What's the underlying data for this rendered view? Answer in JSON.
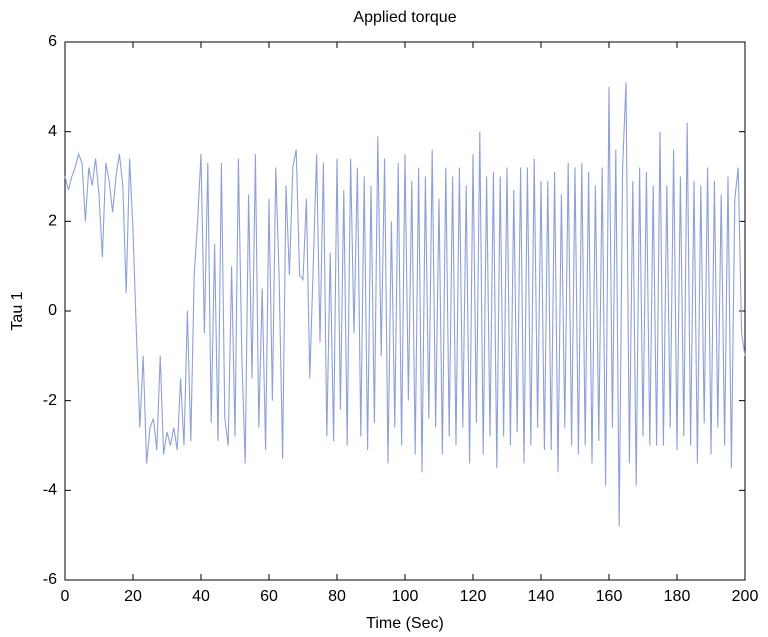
{
  "chart_data": {
    "type": "line",
    "title": "Applied torque",
    "x_label": "Time (Sec)",
    "y_label": "Tau 1",
    "x": [
      0,
      1,
      2,
      3,
      4,
      5,
      6,
      7,
      8,
      9,
      10,
      11,
      12,
      13,
      14,
      15,
      16,
      17,
      18,
      19,
      20,
      21,
      22,
      23,
      24,
      25,
      26,
      27,
      28,
      29,
      30,
      31,
      32,
      33,
      34,
      35,
      36,
      37,
      38,
      39,
      40,
      41,
      42,
      43,
      44,
      45,
      46,
      47,
      48,
      49,
      50,
      51,
      52,
      53,
      54,
      55,
      56,
      57,
      58,
      59,
      60,
      61,
      62,
      63,
      64,
      65,
      66,
      67,
      68,
      69,
      70,
      71,
      72,
      73,
      74,
      75,
      76,
      77,
      78,
      79,
      80,
      81,
      82,
      83,
      84,
      85,
      86,
      87,
      88,
      89,
      90,
      91,
      92,
      93,
      94,
      95,
      96,
      97,
      98,
      99,
      100,
      101,
      102,
      103,
      104,
      105,
      106,
      107,
      108,
      109,
      110,
      111,
      112,
      113,
      114,
      115,
      116,
      117,
      118,
      119,
      120,
      121,
      122,
      123,
      124,
      125,
      126,
      127,
      128,
      129,
      130,
      131,
      132,
      133,
      134,
      135,
      136,
      137,
      138,
      139,
      140,
      141,
      142,
      143,
      144,
      145,
      146,
      147,
      148,
      149,
      150,
      151,
      152,
      153,
      154,
      155,
      156,
      157,
      158,
      159,
      160,
      161,
      162,
      163,
      164,
      165,
      166,
      167,
      168,
      169,
      170,
      171,
      172,
      173,
      174,
      175,
      176,
      177,
      178,
      179,
      180,
      181,
      182,
      183,
      184,
      185,
      186,
      187,
      188,
      189,
      190,
      191,
      192,
      193,
      194,
      195,
      196,
      197,
      198,
      199,
      200
    ],
    "series": [
      {
        "name": "Tau 1",
        "color": "#8fa0d8",
        "values": [
          3.0,
          2.7,
          3.0,
          3.2,
          3.5,
          3.3,
          2.0,
          3.2,
          2.8,
          3.4,
          2.6,
          1.2,
          3.3,
          2.9,
          2.2,
          3.0,
          3.5,
          2.8,
          0.4,
          3.4,
          1.8,
          -0.5,
          -2.6,
          -1.0,
          -3.4,
          -2.6,
          -2.4,
          -3.1,
          -1.0,
          -3.2,
          -2.7,
          -3.0,
          -2.6,
          -3.1,
          -1.5,
          -3.0,
          0.0,
          -2.9,
          0.8,
          2.0,
          3.5,
          -0.5,
          3.3,
          -2.5,
          1.5,
          -2.9,
          3.3,
          -2.4,
          -3.0,
          1.0,
          -2.8,
          3.4,
          -1.0,
          -3.4,
          2.6,
          -1.5,
          3.5,
          -2.6,
          0.5,
          -3.1,
          2.5,
          -2.0,
          3.2,
          0.7,
          -3.3,
          2.8,
          0.8,
          3.2,
          3.6,
          0.8,
          0.7,
          2.5,
          -1.5,
          1.0,
          3.5,
          -0.7,
          3.3,
          -2.8,
          1.3,
          -2.9,
          3.4,
          -2.2,
          2.7,
          -3.0,
          3.4,
          -0.5,
          3.2,
          -2.8,
          3.0,
          -3.1,
          2.8,
          -2.5,
          3.9,
          -1.0,
          3.4,
          -3.4,
          2.0,
          -2.6,
          3.3,
          -3.0,
          3.5,
          -2.0,
          2.9,
          -3.2,
          3.2,
          -3.6,
          3.0,
          -2.4,
          3.6,
          -2.6,
          2.5,
          -3.2,
          3.2,
          -2.8,
          3.0,
          -3.0,
          3.2,
          -2.6,
          2.8,
          -3.4,
          3.5,
          -2.5,
          4.0,
          -3.2,
          3.0,
          -2.8,
          3.1,
          -3.5,
          3.0,
          -2.8,
          3.2,
          -3.0,
          2.7,
          -2.7,
          3.2,
          -3.4,
          3.2,
          -3.0,
          3.4,
          -2.6,
          2.9,
          -3.1,
          2.9,
          -3.1,
          3.1,
          -3.6,
          2.6,
          -2.6,
          3.3,
          -3.0,
          3.2,
          -3.2,
          3.3,
          -3.0,
          3.1,
          -3.4,
          2.8,
          -2.9,
          3.2,
          -3.9,
          5.0,
          -2.6,
          3.6,
          -4.8,
          3.2,
          5.1,
          -3.4,
          2.9,
          -3.9,
          3.2,
          -2.8,
          3.1,
          -3.0,
          2.8,
          -3.0,
          4.0,
          -3.0,
          2.8,
          -2.6,
          3.6,
          -3.1,
          3.0,
          -2.8,
          4.2,
          -3.0,
          2.9,
          -3.4,
          2.8,
          -2.5,
          3.2,
          -3.2,
          2.9,
          -2.6,
          2.6,
          -3.0,
          3.0,
          -3.5,
          2.5,
          3.2,
          -0.5,
          -1.0
        ]
      }
    ],
    "xlim": [
      0,
      200
    ],
    "ylim": [
      -6,
      6
    ],
    "xticks": [
      0,
      20,
      40,
      60,
      80,
      100,
      120,
      140,
      160,
      180,
      200
    ],
    "yticks": [
      -6,
      -4,
      -2,
      0,
      2,
      4,
      6
    ]
  }
}
